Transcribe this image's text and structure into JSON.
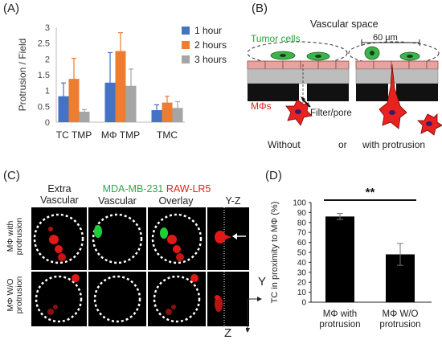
{
  "panels": {
    "A": {
      "tag": "(A)",
      "chart_data": {
        "type": "bar",
        "categories": [
          "TC TMP",
          "MΦ TMP",
          "TMC"
        ],
        "series": [
          {
            "name": "1 hour",
            "color": "#4472c4",
            "values": [
              0.82,
              1.25,
              0.38
            ],
            "errors": [
              0.42,
              0.95,
              0.17
            ]
          },
          {
            "name": "2 hours",
            "color": "#ed7d31",
            "values": [
              1.37,
              2.25,
              0.62
            ],
            "errors": [
              0.65,
              0.58,
              0.2
            ]
          },
          {
            "name": "3 hours",
            "color": "#a5a5a5",
            "values": [
              0.33,
              1.15,
              0.45
            ],
            "errors": [
              0.07,
              0.53,
              0.2
            ]
          }
        ],
        "ylabel": "Protrusion / Field",
        "ylim": [
          0,
          3
        ],
        "yticks": [
          "0",
          "0.5",
          "1",
          "1.5",
          "2",
          "2.5",
          "3"
        ],
        "legend": "top-right",
        "grid": false
      }
    },
    "B": {
      "tag": "(B)",
      "vascular_space": "Vascular space",
      "tumor_cells": "Tumor cells",
      "scale": "60 μm",
      "macrophages": "MΦs",
      "filter_pore": "Filter/pore",
      "without": "Without",
      "or": "or",
      "with_protrusion": "with protrusion"
    },
    "C": {
      "tag": "(C)",
      "header_extra": "Extra\nVascular",
      "header_cell1": "MDA-MB-231",
      "header_cell2": "RAW-LR5",
      "header_vascular": "Vascular",
      "header_overlay": "Overlay",
      "header_yz": "Y-Z",
      "row1": "MΦ with\nprotrusion",
      "row2": "MΦ W/O\nprotrusion",
      "axis_y": "Y",
      "axis_z": "Z"
    },
    "D": {
      "tag": "(D)",
      "chart_data": {
        "type": "bar",
        "categories": [
          "MΦ with\nprotrusion",
          "MΦ W/O\nprotrusion"
        ],
        "values": [
          86,
          48
        ],
        "errors": [
          3,
          11
        ],
        "ylabel": "TC in proximity to MΦ  (%)",
        "ylim": [
          0,
          100
        ],
        "yticks": [
          "0",
          "10",
          "20",
          "30",
          "40",
          "50",
          "60",
          "70",
          "80",
          "90",
          "100"
        ],
        "significance": "**",
        "bar_color": "#000000"
      }
    }
  }
}
